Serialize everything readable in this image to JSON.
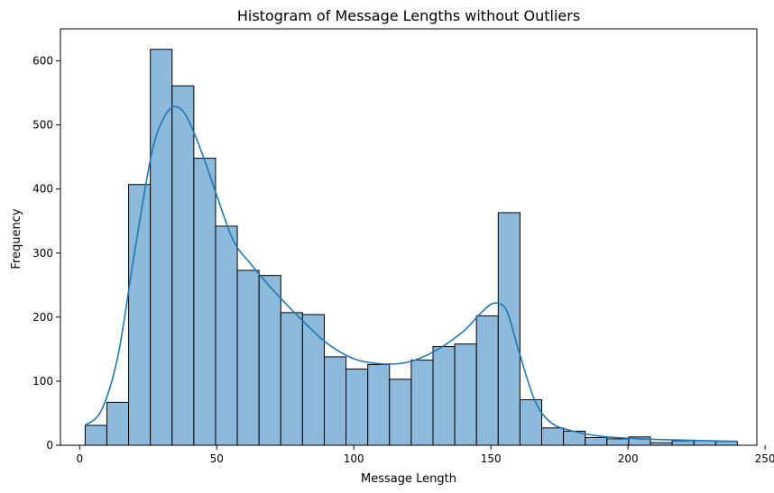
{
  "chart_data": {
    "type": "bar",
    "title": "Histogram of Message Lengths without Outliers",
    "xlabel": "Message Length",
    "ylabel": "Frequency",
    "xlim": [
      -7,
      247
    ],
    "ylim": [
      0,
      650
    ],
    "xticks": [
      0,
      50,
      100,
      150,
      200,
      250
    ],
    "yticks": [
      0,
      100,
      200,
      300,
      400,
      500,
      600
    ],
    "bin_width": 7.93,
    "bins": [
      {
        "x0": 2,
        "value": 31
      },
      {
        "x0": 9.93,
        "value": 67
      },
      {
        "x0": 17.86,
        "value": 407
      },
      {
        "x0": 25.79,
        "value": 618
      },
      {
        "x0": 33.72,
        "value": 561
      },
      {
        "x0": 41.65,
        "value": 448
      },
      {
        "x0": 49.58,
        "value": 342
      },
      {
        "x0": 57.51,
        "value": 273
      },
      {
        "x0": 65.44,
        "value": 265
      },
      {
        "x0": 73.37,
        "value": 207
      },
      {
        "x0": 81.3,
        "value": 204
      },
      {
        "x0": 89.23,
        "value": 138
      },
      {
        "x0": 97.16,
        "value": 119
      },
      {
        "x0": 105.09,
        "value": 126
      },
      {
        "x0": 113.02,
        "value": 103
      },
      {
        "x0": 120.95,
        "value": 133
      },
      {
        "x0": 128.88,
        "value": 154
      },
      {
        "x0": 136.81,
        "value": 158
      },
      {
        "x0": 144.74,
        "value": 202
      },
      {
        "x0": 152.67,
        "value": 363
      },
      {
        "x0": 160.6,
        "value": 71
      },
      {
        "x0": 168.53,
        "value": 27
      },
      {
        "x0": 176.46,
        "value": 22
      },
      {
        "x0": 184.39,
        "value": 12
      },
      {
        "x0": 192.32,
        "value": 10
      },
      {
        "x0": 200.25,
        "value": 13
      },
      {
        "x0": 208.18,
        "value": 4
      },
      {
        "x0": 216.11,
        "value": 7
      },
      {
        "x0": 224.04,
        "value": 7
      },
      {
        "x0": 231.97,
        "value": 6
      }
    ],
    "kde": {
      "x": [
        2,
        8,
        14,
        20,
        26,
        30,
        34,
        38,
        42,
        46,
        50,
        56,
        62,
        70,
        80,
        90,
        100,
        110,
        120,
        130,
        140,
        146,
        150,
        153,
        156,
        160,
        166,
        172,
        180,
        190,
        200,
        210,
        220,
        230,
        240
      ],
      "y": [
        31,
        55,
        140,
        300,
        450,
        505,
        528,
        520,
        485,
        440,
        390,
        320,
        285,
        245,
        200,
        160,
        135,
        127,
        130,
        148,
        178,
        205,
        220,
        221,
        208,
        150,
        70,
        35,
        22,
        14,
        11,
        9,
        8,
        7,
        6
      ]
    },
    "grid": false,
    "colors": {
      "bar_fill": "#8db9db",
      "bar_edge": "#000000",
      "kde_line": "#1f77b4"
    }
  }
}
